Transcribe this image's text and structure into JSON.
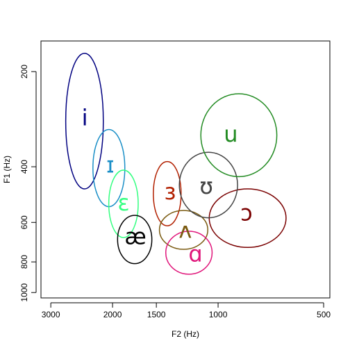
{
  "chart_data": {
    "type": "scatter",
    "title": "",
    "xlabel": "F2 (Hz)",
    "ylabel": "F1 (Hz)",
    "x_scale": "log-reversed",
    "y_scale": "log-reversed",
    "xlim": [
      3200,
      480
    ],
    "ylim": [
      160,
      1040
    ],
    "x_ticks": [
      3000,
      2000,
      1500,
      1000,
      500
    ],
    "y_ticks": [
      200,
      400,
      600,
      800,
      1000
    ],
    "grid": false,
    "legend": "none",
    "vowels": [
      {
        "symbol": "i",
        "color": "#000080",
        "f2": 2400,
        "f1": 280,
        "f2_range": [
          2125,
          2720
        ],
        "f1_range": [
          175,
          470
        ]
      },
      {
        "symbol": "ɪ",
        "color": "#1a8fc7",
        "f2": 2030,
        "f1": 395,
        "f2_range": [
          1845,
          2275
        ],
        "f1_range": [
          305,
          535
        ]
      },
      {
        "symbol": "ɛ",
        "color": "#33ff80",
        "f2": 1860,
        "f1": 520,
        "f2_range": [
          1690,
          2050
        ],
        "f1_range": [
          410,
          670
        ]
      },
      {
        "symbol": "æ",
        "color": "#000000",
        "f2": 1720,
        "f1": 665,
        "f2_range": [
          1545,
          1935
        ],
        "f1_range": [
          570,
          810
        ]
      },
      {
        "symbol": "ɜ",
        "color": "#b22000",
        "f2": 1370,
        "f1": 480,
        "f2_range": [
          1275,
          1530
        ],
        "f1_range": [
          385,
          615
        ]
      },
      {
        "symbol": "ʌ",
        "color": "#7a5a10",
        "f2": 1240,
        "f1": 635,
        "f2_range": [
          1070,
          1470
        ],
        "f1_range": [
          550,
          730
        ]
      },
      {
        "symbol": "ɑ",
        "color": "#e0157a",
        "f2": 1160,
        "f1": 755,
        "f2_range": [
          1040,
          1410
        ],
        "f1_range": [
          640,
          875
        ]
      },
      {
        "symbol": "ɔ",
        "color": "#7a0000",
        "f2": 830,
        "f1": 560,
        "f2_range": [
          640,
          1060
        ],
        "f1_range": [
          470,
          720
        ]
      },
      {
        "symbol": "ʊ",
        "color": "#444444",
        "f2": 1080,
        "f1": 460,
        "f2_range": [
          880,
          1290
        ],
        "f1_range": [
          360,
          580
        ]
      },
      {
        "symbol": "u",
        "color": "#228b22",
        "f2": 920,
        "f1": 315,
        "f2_range": [
          680,
          1120
        ],
        "f1_range": [
          235,
          430
        ]
      }
    ]
  }
}
